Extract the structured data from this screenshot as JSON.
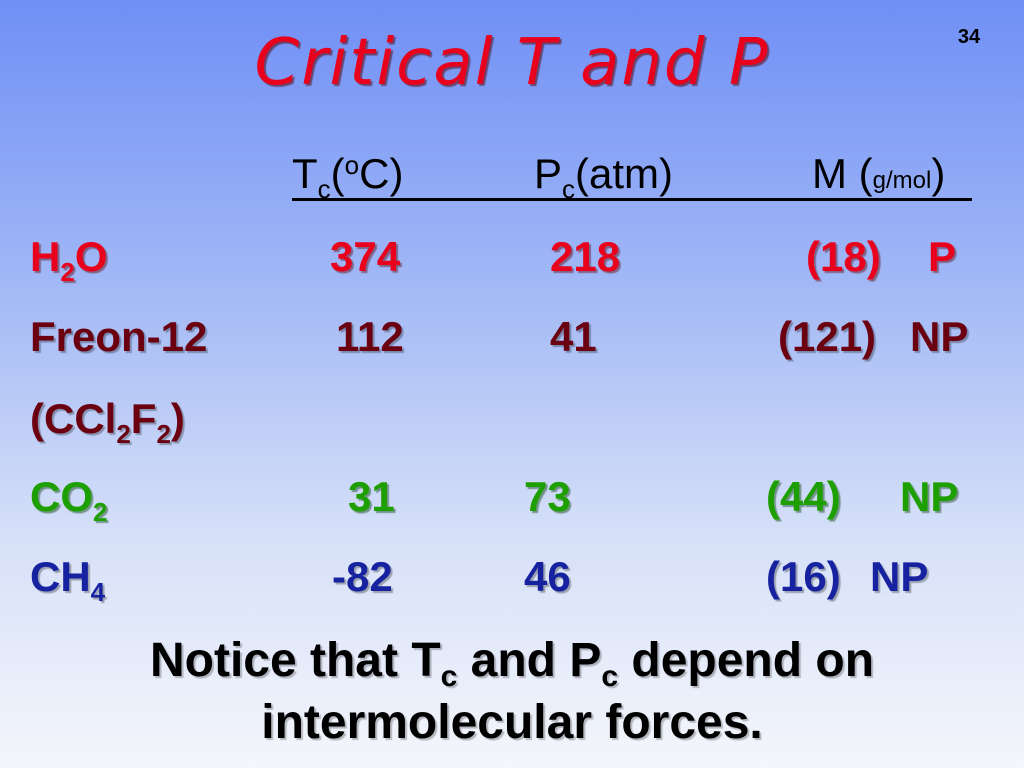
{
  "slide_number": "34",
  "title": "Critical T and P",
  "header": {
    "tc_main": "T",
    "tc_sub": "c",
    "tc_open": "(",
    "tc_sup": "o",
    "tc_close": "C)",
    "pc_main": "P",
    "pc_sub": "c",
    "pc_unit": "(atm)",
    "m_open": "M (",
    "m_unit": "g/mol",
    "m_close": ")"
  },
  "rows": [
    {
      "name_a": "H",
      "name_sub": "2",
      "name_b": "O",
      "tc": "374",
      "pc": "218",
      "m": "(18)",
      "pol": "P"
    },
    {
      "name": "Freon-12",
      "tc": "112",
      "pc": "41",
      "m": "(121)",
      "pol": "NP"
    },
    {
      "formula_a": "(CCl",
      "formula_sub1": "2",
      "formula_b": "F",
      "formula_sub2": "2",
      "formula_c": ")"
    },
    {
      "name_a": "CO",
      "name_sub": "2",
      "tc": "31",
      "pc": "73",
      "m": "(44)",
      "pol": "NP"
    },
    {
      "name_a": "CH",
      "name_sub": "4",
      "tc": "-82",
      "pc": "46",
      "m": "(16)",
      "pol": "NP"
    }
  ],
  "notice": {
    "part1": "Notice that T",
    "sub1": "c",
    "part2": " and P",
    "sub2": "c",
    "part3": " depend on",
    "line2": "intermolecular forces."
  }
}
